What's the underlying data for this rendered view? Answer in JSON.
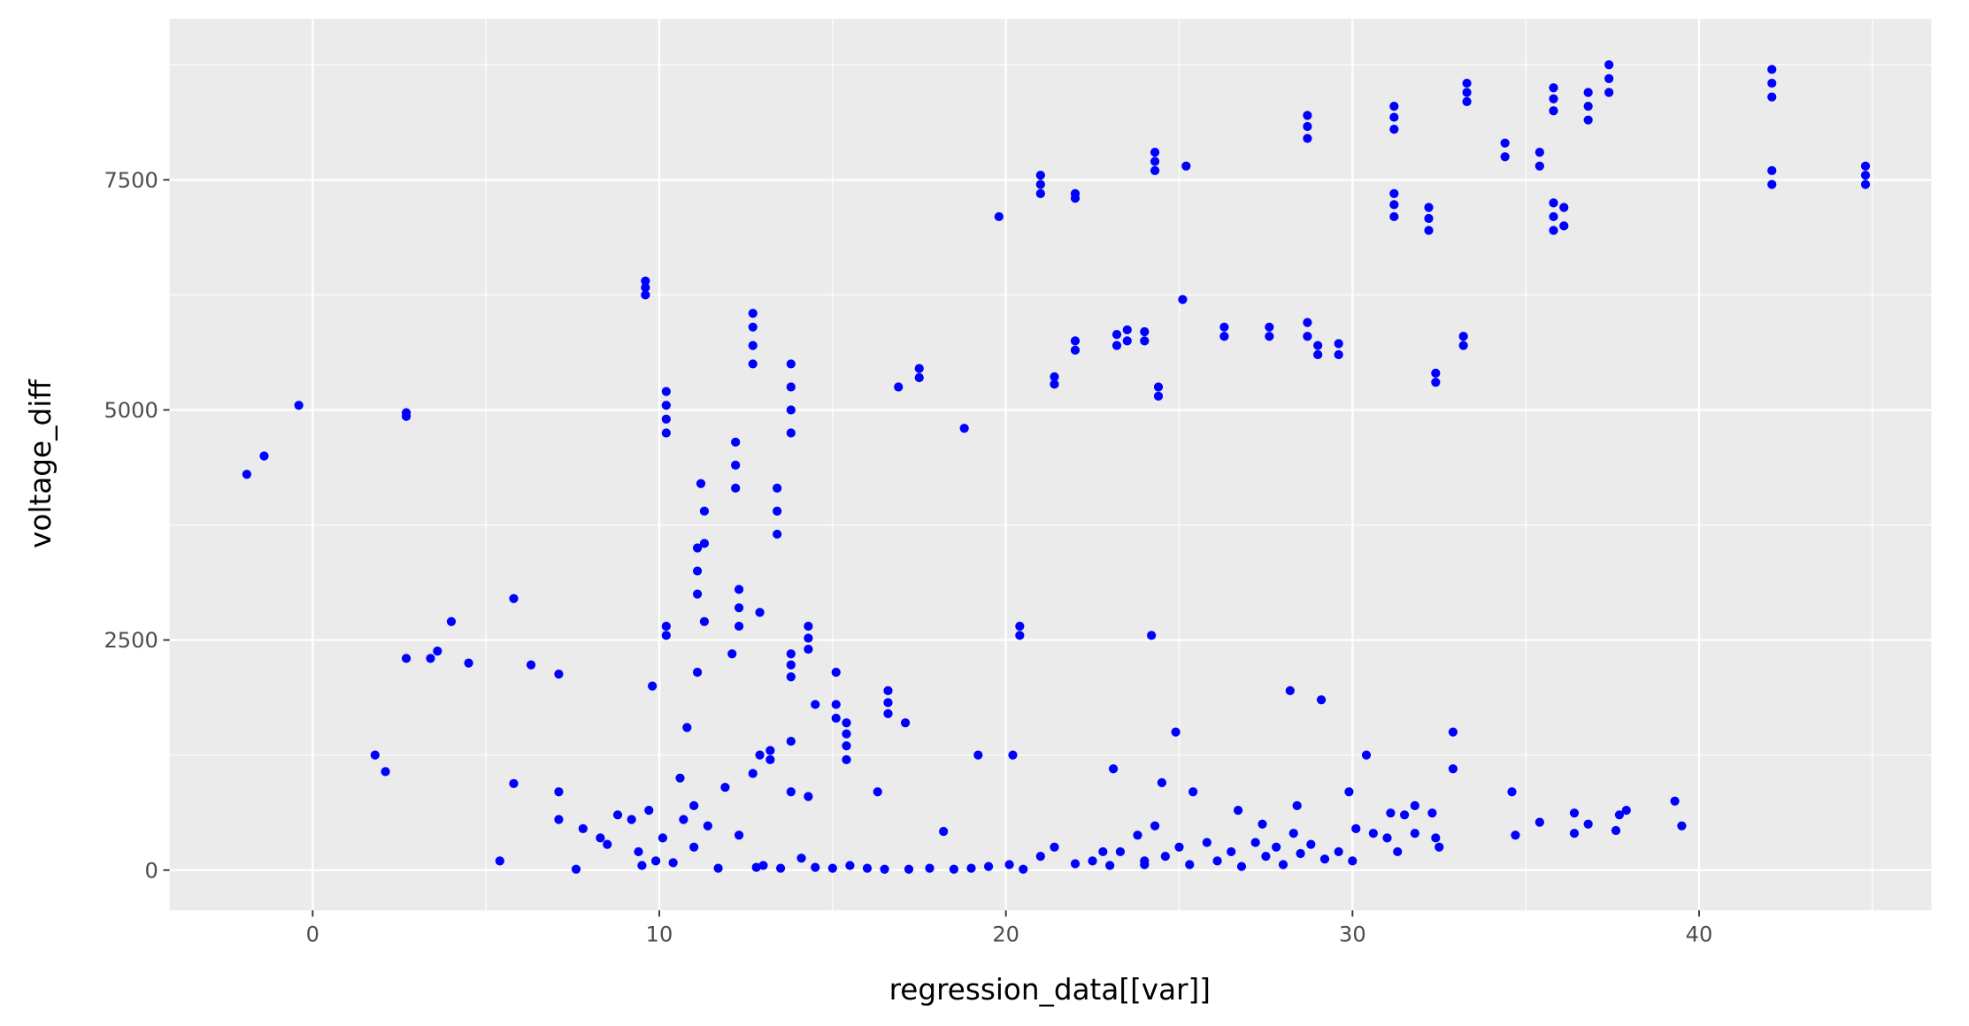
{
  "chart_data": {
    "type": "scatter",
    "x_label": "regression_data[[var]]",
    "y_label": "voltage_diff",
    "color": "#0000ff",
    "xlim": [
      -4.13,
      46.7
    ],
    "ylim": [
      -437,
      9249
    ],
    "xticks": [
      0,
      10,
      20,
      30,
      40
    ],
    "yticks": [
      0,
      2500,
      5000,
      7500
    ],
    "grid": true,
    "minor_grid": true,
    "x": [
      -1.9,
      -1.4,
      -0.4,
      2.7,
      2.7,
      9.6,
      9.6,
      9.6,
      10.2,
      10.2,
      10.2,
      10.2,
      12.2,
      12.2,
      12.2,
      12.7,
      12.7,
      12.7,
      12.7,
      13.8,
      13.8,
      13.8,
      13.8,
      13.4,
      13.4,
      13.4,
      11.3,
      11.3,
      11.1,
      11.1,
      11.1,
      11.2,
      16.9,
      17.5,
      17.5,
      18.8,
      19.8,
      21,
      21,
      21,
      22,
      22,
      21.4,
      21.4,
      22,
      22,
      23.2,
      23.2,
      23.5,
      23.5,
      24,
      24,
      24.4,
      24.4,
      24.3,
      24.3,
      24.3,
      25.2,
      25.1,
      26.3,
      26.3,
      27.6,
      27.6,
      28.7,
      28.7,
      28.7,
      28.7,
      28.7,
      29,
      29,
      29.6,
      29.6,
      31.2,
      31.2,
      31.2,
      31.2,
      31.2,
      31.2,
      32.2,
      32.2,
      32.2,
      32.4,
      32.4,
      33.2,
      33.2,
      33.3,
      33.3,
      33.3,
      34.4,
      34.4,
      35.4,
      35.4,
      35.8,
      35.8,
      35.8,
      35.8,
      35.8,
      35.8,
      36.1,
      36.1,
      36.8,
      36.8,
      36.8,
      37.4,
      37.4,
      37.4,
      42.1,
      42.1,
      42.1,
      42.1,
      42.1,
      44.8,
      44.8,
      44.8,
      2.7,
      3.4,
      3.6,
      4,
      4.5,
      5.8,
      6.3,
      7.1,
      9.8,
      10.2,
      10.2,
      11.3,
      11.1,
      12.1,
      12.3,
      12.3,
      12.3,
      12.9,
      13.8,
      13.8,
      13.8,
      14.3,
      14.3,
      14.3,
      14.5,
      15.1,
      15.1,
      15.1,
      15.4,
      15.4,
      15.4,
      16.6,
      16.6,
      16.6,
      17.1,
      20.4,
      20.4,
      24.2,
      28.2,
      29.1,
      10.8,
      13.8,
      15.4,
      13.2,
      13.2,
      12.9,
      19.2,
      20.2,
      23.1,
      24.9,
      32.9,
      32.9,
      30.4,
      10.6,
      1.8,
      2.1,
      5.8,
      7.1,
      7.1,
      11,
      12.7,
      13.8,
      14.3,
      16.3,
      24.5,
      25.4,
      29.9,
      34.6,
      39.3,
      39.5,
      37.7,
      37.9,
      36.4,
      36.4,
      36.8,
      37.6,
      35.4,
      34.7,
      32.4,
      32.5,
      32.3,
      31.8,
      31.5,
      31.1,
      30.1,
      30.6,
      31,
      31.8,
      31.3,
      5.4,
      7.6,
      7.8,
      8.3,
      8.5,
      8.8,
      9.2,
      9.4,
      9.5,
      9.7,
      9.9,
      10.1,
      10.4,
      10.7,
      11,
      11.4,
      11.7,
      11.9,
      12.3,
      12.8,
      13,
      13.5,
      14.1,
      14.5,
      15,
      15.5,
      16,
      16.5,
      17.2,
      17.8,
      18.2,
      18.5,
      19,
      19.5,
      20.1,
      20.5,
      21,
      21.4,
      22,
      22.5,
      23,
      23.3,
      23.8,
      24,
      24.3,
      24.6,
      25,
      25.3,
      25.8,
      26.1,
      26.5,
      26.8,
      27.2,
      27.5,
      27.8,
      28,
      28.3,
      28.5,
      28.8,
      29.2,
      29.6,
      30,
      26.7,
      27.4,
      28.4,
      24,
      22.8
    ],
    "values": [
      4300,
      4500,
      5050,
      4930,
      4970,
      6250,
      6330,
      6400,
      4750,
      4900,
      5050,
      5200,
      4150,
      4400,
      4650,
      5500,
      5700,
      5900,
      6050,
      4750,
      5000,
      5250,
      5500,
      3650,
      3900,
      4150,
      3550,
      3900,
      3000,
      3250,
      3500,
      4200,
      5250,
      5350,
      5450,
      4800,
      7100,
      7350,
      7450,
      7550,
      7300,
      7350,
      5280,
      5360,
      5650,
      5750,
      5700,
      5820,
      5750,
      5870,
      5750,
      5850,
      5150,
      5250,
      7600,
      7700,
      7800,
      7650,
      6200,
      5800,
      5900,
      5800,
      5900,
      5800,
      5950,
      7950,
      8080,
      8200,
      5600,
      5700,
      5600,
      5720,
      7100,
      7230,
      7350,
      8050,
      8180,
      8300,
      6950,
      7080,
      7200,
      5300,
      5400,
      5700,
      5800,
      8350,
      8450,
      8550,
      7750,
      7900,
      7650,
      7800,
      6950,
      7100,
      7250,
      8250,
      8380,
      8500,
      7000,
      7200,
      8150,
      8300,
      8450,
      8450,
      8600,
      8750,
      7450,
      7600,
      8400,
      8550,
      8700,
      7450,
      7550,
      7650,
      2300,
      2300,
      2380,
      2700,
      2250,
      2950,
      2230,
      2130,
      2000,
      2550,
      2650,
      2700,
      2150,
      2350,
      2650,
      2850,
      3050,
      2800,
      2100,
      2230,
      2350,
      2400,
      2520,
      2650,
      1800,
      2150,
      1650,
      1800,
      1350,
      1480,
      1600,
      1700,
      1820,
      1950,
      1600,
      2550,
      2650,
      2550,
      1950,
      1850,
      1550,
      1400,
      1200,
      1200,
      1300,
      1250,
      1250,
      1250,
      1100,
      1500,
      1500,
      1100,
      1250,
      1000,
      1250,
      1070,
      940,
      850,
      550,
      700,
      1050,
      850,
      800,
      850,
      950,
      850,
      850,
      850,
      750,
      480,
      600,
      650,
      620,
      400,
      500,
      430,
      520,
      380,
      350,
      250,
      620,
      700,
      600,
      620,
      450,
      400,
      350,
      400,
      200,
      100,
      10,
      450,
      350,
      280,
      600,
      550,
      200,
      50,
      650,
      100,
      350,
      80,
      550,
      250,
      480,
      20,
      900,
      380,
      30,
      50,
      20,
      130,
      30,
      20,
      50,
      20,
      10,
      10,
      20,
      420,
      10,
      20,
      40,
      60,
      10,
      150,
      250,
      70,
      100,
      50,
      200,
      380,
      100,
      480,
      150,
      250,
      60,
      300,
      100,
      200,
      40,
      300,
      150,
      250,
      60,
      400,
      180,
      280,
      120,
      200,
      100,
      650,
      500,
      700,
      60,
      200
    ]
  }
}
